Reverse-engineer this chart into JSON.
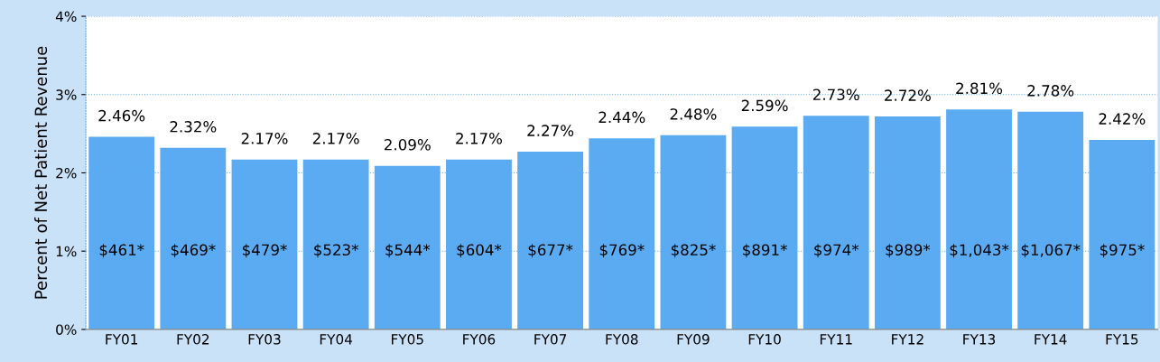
{
  "chart_data": {
    "type": "bar",
    "ylabel": "Percent of Net Patient Revenue",
    "categories": [
      "FY01",
      "FY02",
      "FY03",
      "FY04",
      "FY05",
      "FY06",
      "FY07",
      "FY08",
      "FY09",
      "FY10",
      "FY11",
      "FY12",
      "FY13",
      "FY14",
      "FY15"
    ],
    "values": [
      2.46,
      2.32,
      2.17,
      2.17,
      2.09,
      2.17,
      2.27,
      2.44,
      2.48,
      2.59,
      2.73,
      2.72,
      2.81,
      2.78,
      2.42
    ],
    "value_labels": [
      "2.46%",
      "2.32%",
      "2.17%",
      "2.17%",
      "2.09%",
      "2.17%",
      "2.27%",
      "2.44%",
      "2.48%",
      "2.59%",
      "2.73%",
      "2.72%",
      "2.81%",
      "2.78%",
      "2.42%"
    ],
    "color": "#5aabf2",
    "ylim": [
      0,
      4
    ],
    "yticks": [
      {
        "value": 0,
        "label": "0%"
      },
      {
        "value": 1,
        "label": "1%"
      },
      {
        "value": 2,
        "label": "2%"
      },
      {
        "value": 3,
        "label": "3%"
      },
      {
        "value": 4,
        "label": "4%"
      }
    ],
    "grid": "y",
    "annotations": [
      "$461*",
      "$469*",
      "$479*",
      "$523*",
      "$544*",
      "$604*",
      "$677*",
      "$769*",
      "$825*",
      "$891*",
      "$974*",
      "$989*",
      "$1,043*",
      "$1,067*",
      "$975*"
    ]
  }
}
